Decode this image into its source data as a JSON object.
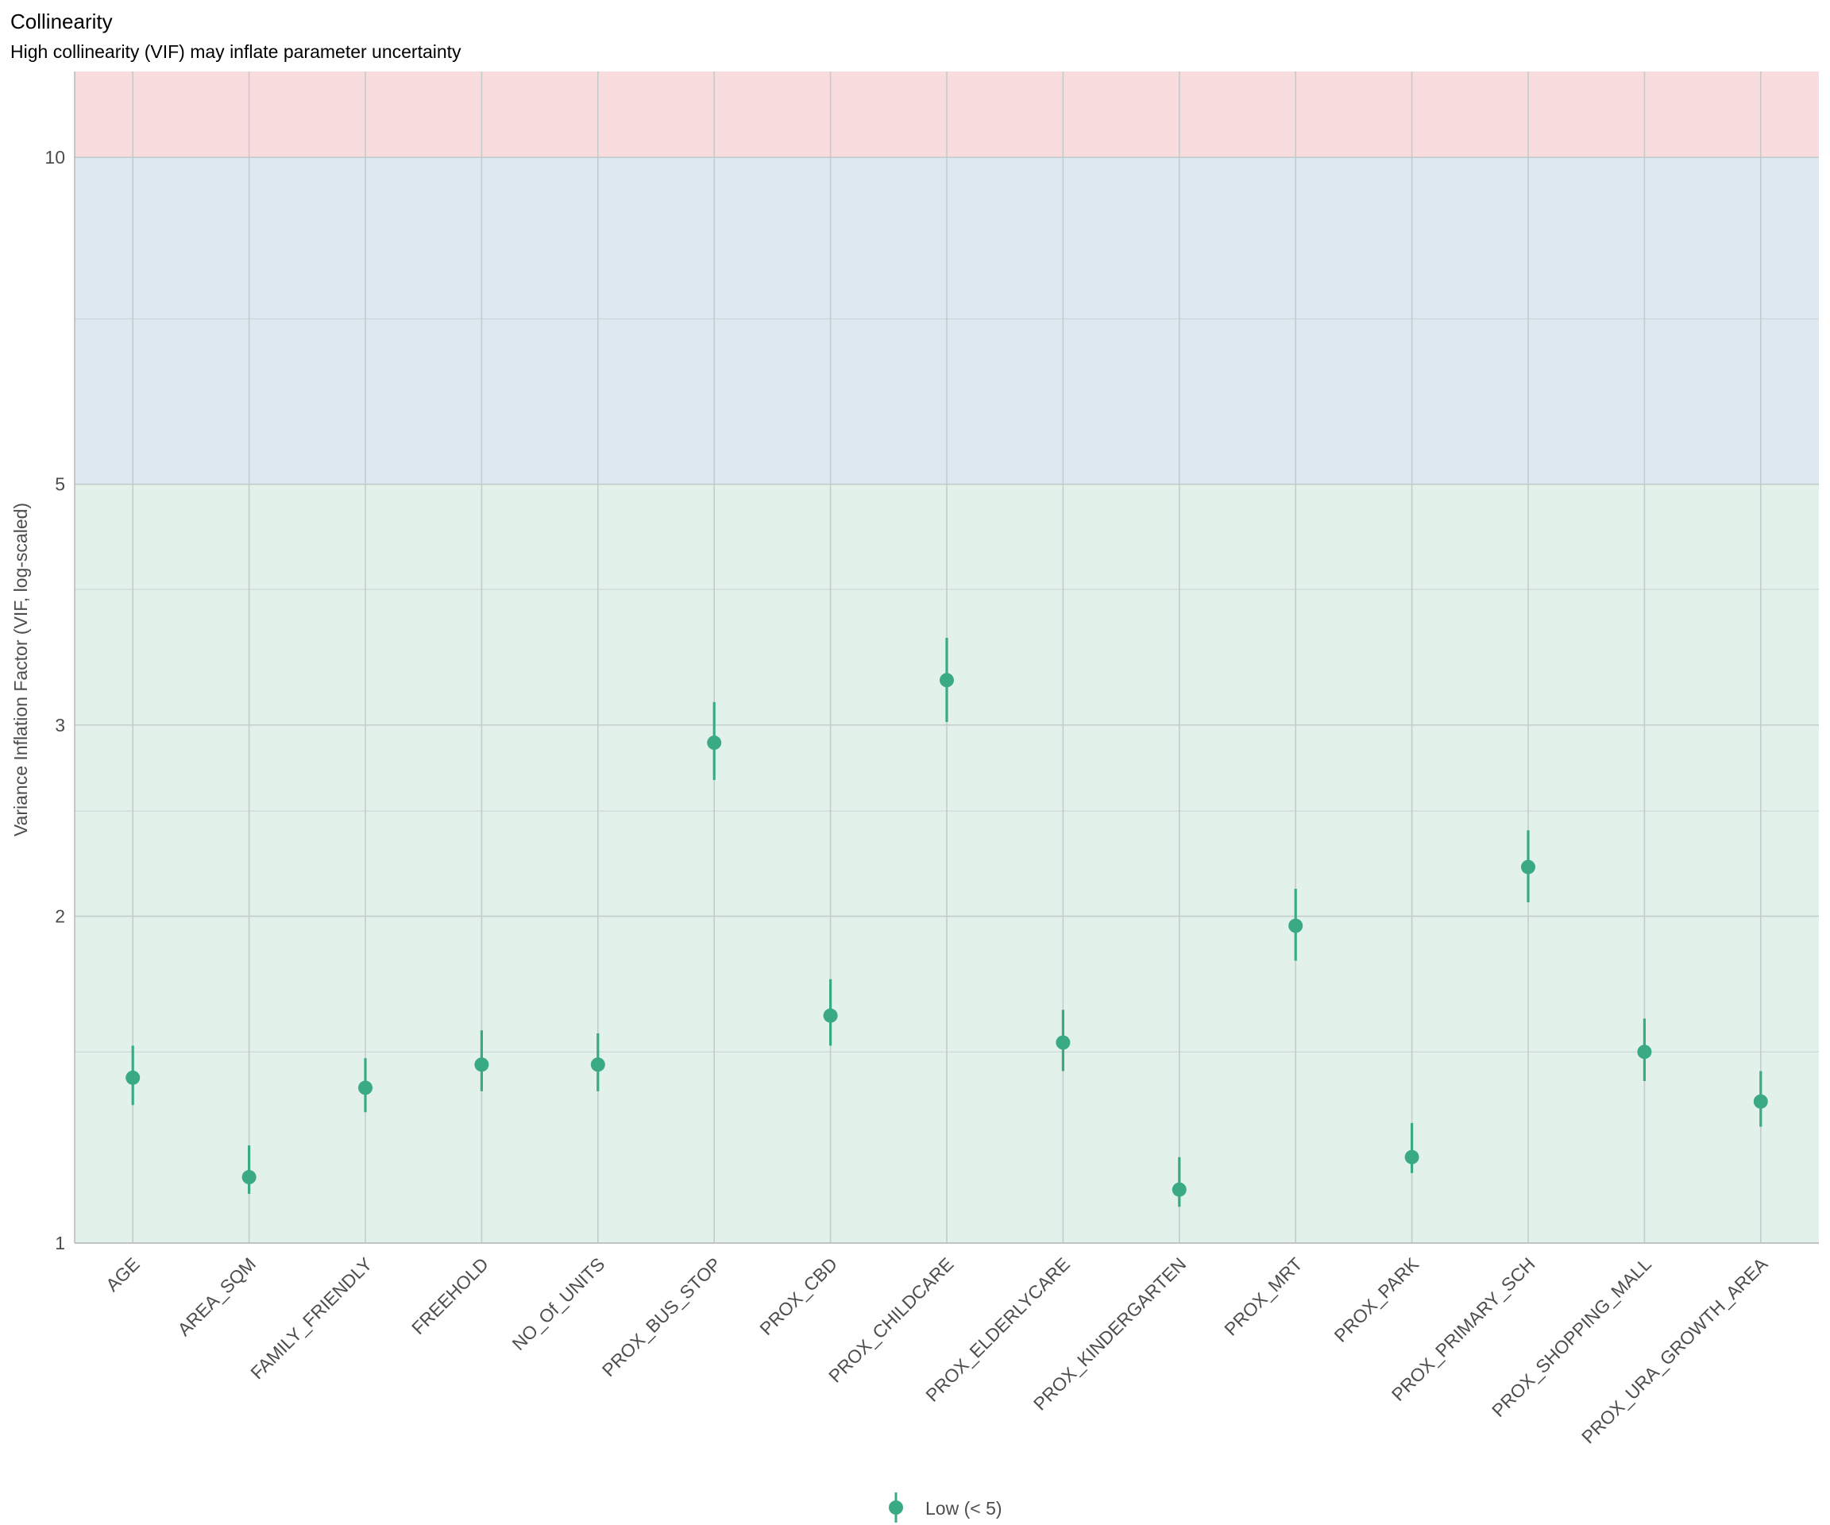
{
  "chart_data": {
    "type": "scatter",
    "title": "Collinearity",
    "subtitle": "High collinearity (VIF) may inflate parameter uncertainty",
    "xlabel": "",
    "ylabel": "Variance Inflation Factor (VIF, log-scaled)",
    "y_scale": "log",
    "ylim": [
      1,
      12
    ],
    "y_ticks": [
      1,
      2,
      3,
      5,
      10
    ],
    "y_minor_ticks": [
      1.5,
      2.5,
      4,
      7.1
    ],
    "grid": true,
    "bands": [
      {
        "from": 1,
        "to": 5,
        "color": "#e2f2eb"
      },
      {
        "from": 5,
        "to": 10,
        "color": "#dde8f1"
      },
      {
        "from": 10,
        "to": 12,
        "color": "#f9dcde"
      }
    ],
    "categories": [
      "AGE",
      "AREA_SQM",
      "FAMILY_FRIENDLY",
      "FREEHOLD",
      "NO_Of_UNITS",
      "PROX_BUS_STOP",
      "PROX_CBD",
      "PROX_CHILDCARE",
      "PROX_ELDERLYCARE",
      "PROX_KINDERGARTEN",
      "PROX_MRT",
      "PROX_PARK",
      "PROX_PRIMARY_SCH",
      "PROX_SHOPPING_MALL",
      "PROX_URA_GROWTH_AREA"
    ],
    "series": [
      {
        "name": "Low (< 5)",
        "color": "#3aaa85",
        "values": [
          1.42,
          1.15,
          1.39,
          1.46,
          1.46,
          2.89,
          1.62,
          3.3,
          1.53,
          1.12,
          1.96,
          1.2,
          2.22,
          1.5,
          1.35
        ],
        "ci_low": [
          1.34,
          1.11,
          1.32,
          1.38,
          1.38,
          2.67,
          1.52,
          3.02,
          1.44,
          1.08,
          1.82,
          1.16,
          2.06,
          1.41,
          1.28
        ],
        "ci_high": [
          1.52,
          1.23,
          1.48,
          1.57,
          1.56,
          3.15,
          1.75,
          3.61,
          1.64,
          1.2,
          2.12,
          1.29,
          2.4,
          1.61,
          1.44
        ]
      }
    ],
    "legend": {
      "position": "bottom",
      "label": "Low (< 5)"
    }
  }
}
